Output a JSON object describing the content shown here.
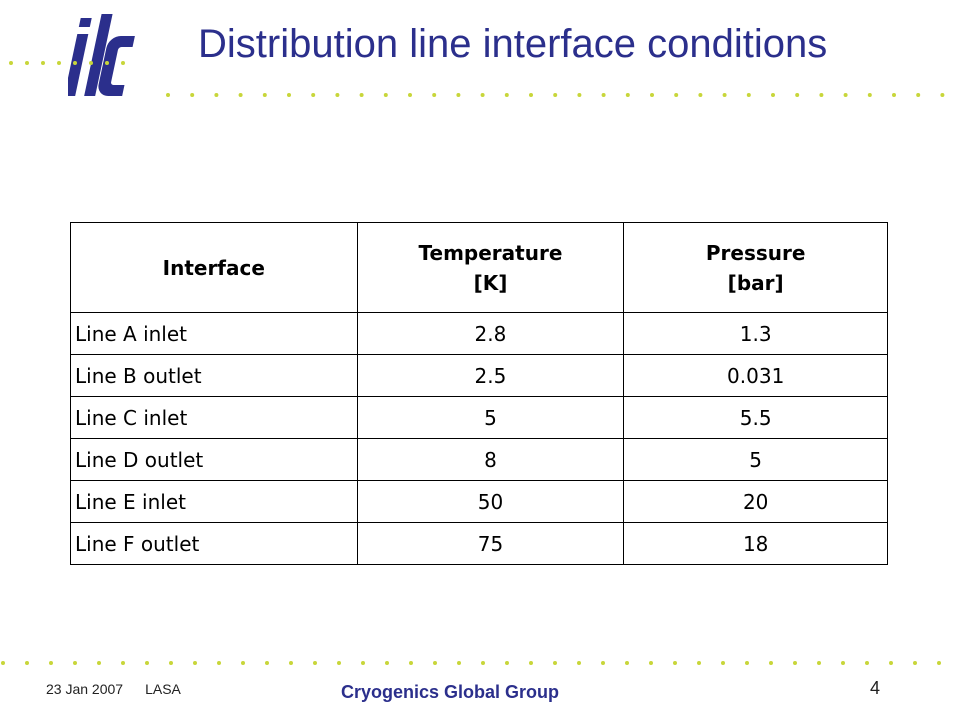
{
  "slide": {
    "title": "Distribution line interface conditions",
    "logo_text": "ilc",
    "accent_colors": {
      "title": "#2b2f8c",
      "dots": "#c8d63a",
      "logo": "#2b2f8c"
    }
  },
  "table": {
    "headers": [
      "Interface",
      "Temperature [K]",
      "Pressure [bar]"
    ],
    "rows": [
      [
        "Line A inlet",
        "2.8",
        "1.3"
      ],
      [
        "Line B outlet",
        "2.5",
        "0.031"
      ],
      [
        "Line C inlet",
        "5",
        "5.5"
      ],
      [
        "Line D outlet",
        "8",
        "5"
      ],
      [
        "Line E inlet",
        "50",
        "20"
      ],
      [
        "Line F outlet",
        "75",
        "18"
      ]
    ]
  },
  "footer": {
    "date": "23 Jan 2007",
    "location": "LASA",
    "group": "Cryogenics Global Group",
    "page_number": "4"
  }
}
